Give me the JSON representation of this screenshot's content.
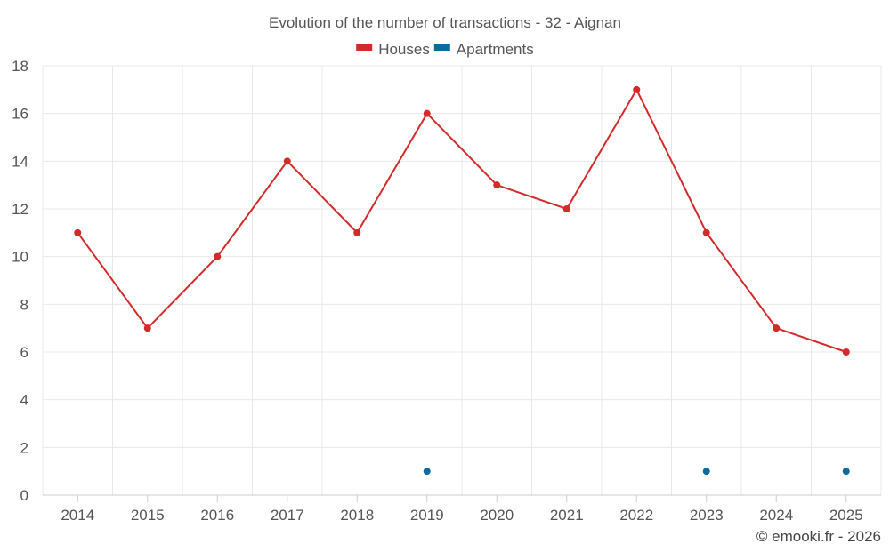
{
  "chart_data": {
    "type": "line",
    "title": "Evolution of the number of transactions - 32 - Aignan",
    "categories": [
      "2014",
      "2015",
      "2016",
      "2017",
      "2018",
      "2019",
      "2020",
      "2021",
      "2022",
      "2023",
      "2024",
      "2025"
    ],
    "series": [
      {
        "name": "Houses",
        "color": "#d32a2a",
        "values": [
          11,
          7,
          10,
          14,
          11,
          16,
          13,
          12,
          17,
          11,
          7,
          6
        ],
        "line": true
      },
      {
        "name": "Apartments",
        "color": "#0f6b9e",
        "values": [
          null,
          null,
          null,
          null,
          null,
          1,
          null,
          null,
          null,
          1,
          null,
          1
        ],
        "line": false
      }
    ],
    "ylim": [
      0,
      18
    ],
    "yticks": [
      0,
      2,
      4,
      6,
      8,
      10,
      12,
      14,
      16,
      18
    ],
    "xlabel": "",
    "ylabel": "",
    "grid": true,
    "legend_position": "top-center"
  },
  "credit": "© emooki.fr - 2026"
}
